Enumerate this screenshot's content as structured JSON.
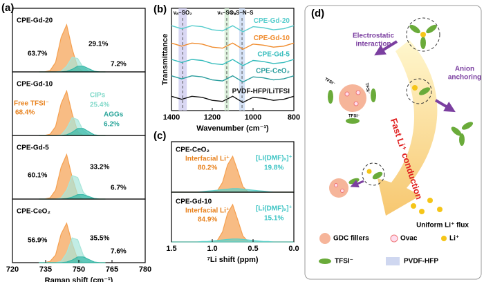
{
  "panels": [
    "(a)",
    "(b)",
    "(c)",
    "(d)"
  ],
  "chart_data": [
    {
      "type": "area",
      "title": "CPE-Gd-20",
      "x": [
        732,
        734.5,
        737,
        739.5,
        742,
        744.5,
        747,
        749.5,
        752,
        754.5,
        757,
        759.5,
        762
      ],
      "xlim": [
        720,
        780
      ],
      "ylim": [
        0,
        1
      ],
      "series": [
        {
          "color": "#f5a050",
          "values": [
            0,
            0,
            0.02,
            0.15,
            0.54,
            0.74,
            0.36,
            0.07,
            0,
            0,
            0,
            0,
            0
          ]
        },
        {
          "color": "#a8e6da",
          "values": [
            0,
            0,
            0,
            0,
            0.01,
            0.09,
            0.23,
            0.21,
            0.07,
            0.01,
            0,
            0,
            0
          ]
        },
        {
          "color": "#36b8a8",
          "values": [
            0,
            0,
            0,
            0,
            0,
            0.01,
            0.04,
            0.09,
            0.09,
            0.05,
            0.01,
            0,
            0
          ]
        }
      ],
      "annotations": [
        "63.7%",
        "29.1%",
        "7.2%"
      ]
    },
    {
      "type": "area",
      "title": "CPE-Gd-10",
      "x": [
        732,
        734.5,
        737,
        739.5,
        742,
        744.5,
        747,
        749.5,
        752,
        754.5,
        757,
        759.5,
        762
      ],
      "xlim": [
        720,
        780
      ],
      "ylim": [
        0,
        1
      ],
      "series": [
        {
          "color": "#f5a050",
          "values": [
            0,
            0,
            0.02,
            0.14,
            0.5,
            0.7,
            0.34,
            0.06,
            0,
            0,
            0,
            0,
            0
          ]
        },
        {
          "color": "#a8e6da",
          "values": [
            0,
            0,
            0,
            0,
            0.01,
            0.11,
            0.28,
            0.25,
            0.08,
            0.01,
            0,
            0,
            0
          ]
        },
        {
          "color": "#36b8a8",
          "values": [
            0,
            0,
            0,
            0,
            0,
            0.01,
            0.05,
            0.11,
            0.11,
            0.06,
            0.01,
            0,
            0
          ]
        }
      ],
      "annotations": [
        "Free TFSI⁻",
        "68.4%",
        "CIPs",
        "25.4%",
        "AGGs",
        "6.2%"
      ]
    },
    {
      "type": "area",
      "title": "CPE-Gd-5",
      "x": [
        732,
        734.5,
        737,
        739.5,
        742,
        744.5,
        747,
        749.5,
        752,
        754.5,
        757,
        759.5,
        762
      ],
      "xlim": [
        720,
        780
      ],
      "ylim": [
        0,
        1
      ],
      "series": [
        {
          "color": "#f5a050",
          "values": [
            0,
            0,
            0.02,
            0.14,
            0.5,
            0.7,
            0.34,
            0.06,
            0,
            0,
            0,
            0,
            0
          ]
        },
        {
          "color": "#a8e6da",
          "values": [
            0,
            0,
            0,
            0,
            0.02,
            0.14,
            0.37,
            0.34,
            0.11,
            0.02,
            0,
            0,
            0
          ]
        },
        {
          "color": "#36b8a8",
          "values": [
            0,
            0,
            0,
            0,
            0,
            0.01,
            0.03,
            0.07,
            0.07,
            0.04,
            0.01,
            0,
            0
          ]
        }
      ],
      "annotations": [
        "60.1%",
        "33.2%",
        "6.7%"
      ]
    },
    {
      "type": "area",
      "title": "CPE-CeO₂",
      "x": [
        732,
        734.5,
        737,
        739.5,
        742,
        744.5,
        747,
        749.5,
        752,
        754.5,
        757,
        759.5,
        762
      ],
      "xlim": [
        720,
        780
      ],
      "ylim": [
        0,
        1
      ],
      "xticks": [
        720,
        735,
        750,
        765,
        780
      ],
      "xlabel": "Raman shift (cm⁻¹)",
      "series": [
        {
          "color": "#f5a050",
          "values": [
            0,
            0,
            0.02,
            0.12,
            0.45,
            0.62,
            0.3,
            0.05,
            0,
            0,
            0,
            0,
            0
          ]
        },
        {
          "color": "#a8e6da",
          "values": [
            0,
            0,
            0,
            0,
            0.02,
            0.15,
            0.39,
            0.36,
            0.12,
            0.02,
            0,
            0,
            0
          ]
        },
        {
          "color": "#36b8a8",
          "values": [
            0,
            0,
            0,
            0,
            0,
            0.01,
            0.04,
            0.09,
            0.09,
            0.05,
            0.01,
            0,
            0
          ]
        }
      ],
      "annotations": [
        "56.9%",
        "35.5%",
        "7.6%"
      ]
    },
    {
      "type": "line",
      "x": [
        1400,
        1350,
        1300,
        1250,
        1200,
        1150,
        1100,
        1050,
        1000,
        950,
        900,
        850,
        800
      ],
      "xlim": [
        1400,
        800
      ],
      "ylim": [
        0,
        1
      ],
      "xticks": [
        1400,
        1200,
        1000,
        800
      ],
      "xlabel": "Wavenumber (cm⁻¹)",
      "ylabel": "Transmittance",
      "bands": [
        {
          "label": "νₐ–SO₂",
          "range": [
            1365,
            1325
          ],
          "color": "#cfcdf0"
        },
        {
          "label": "νₛ–SO₂",
          "range": [
            1140,
            1118
          ],
          "color": "#d3ecd3"
        },
        {
          "label": "νₐS–N–S",
          "range": [
            1068,
            1040
          ],
          "color": "#c9daf2"
        }
      ],
      "series": [
        {
          "name": "CPE-Gd-20",
          "color": "#55cccc",
          "values": [
            0.83,
            0.8,
            0.83,
            0.82,
            0.79,
            0.78,
            0.83,
            0.77,
            0.82,
            0.81,
            0.79,
            0.8,
            0.83
          ]
        },
        {
          "name": "CPE-Gd-10",
          "color": "#f08a2a",
          "values": [
            0.66,
            0.63,
            0.66,
            0.65,
            0.62,
            0.61,
            0.66,
            0.6,
            0.65,
            0.64,
            0.62,
            0.63,
            0.66
          ]
        },
        {
          "name": "CPE-Gd-5",
          "color": "#35bcbc",
          "values": [
            0.5,
            0.47,
            0.5,
            0.49,
            0.46,
            0.45,
            0.5,
            0.44,
            0.49,
            0.48,
            0.46,
            0.47,
            0.5
          ]
        },
        {
          "name": "CPE-CeO₂",
          "color": "#2a9d9d",
          "values": [
            0.34,
            0.31,
            0.34,
            0.33,
            0.3,
            0.29,
            0.34,
            0.28,
            0.33,
            0.32,
            0.3,
            0.31,
            0.34
          ]
        },
        {
          "name": "PVDF-HFP/LiTFSI",
          "color": "#111111",
          "values": [
            0.14,
            0.11,
            0.14,
            0.13,
            0.1,
            0.09,
            0.14,
            0.08,
            0.13,
            0.12,
            0.1,
            0.11,
            0.14
          ]
        }
      ]
    },
    {
      "type": "area",
      "title": "CPE-CeO₂",
      "x": [
        1.5,
        1.4375,
        1.375,
        1.3125,
        1.25,
        1.1875,
        1.125,
        1.0625,
        1.0,
        0.9375,
        0.875,
        0.8125,
        0.75,
        0.6875,
        0.625,
        0.5625,
        0.5,
        0.4375,
        0.375,
        0.3125,
        0.25,
        0.1875,
        0.125,
        0.0625,
        0
      ],
      "xlim": [
        1.5,
        0
      ],
      "ylim": [
        0,
        1
      ],
      "series": [
        {
          "color": "#f5a050",
          "values": [
            0,
            0,
            0,
            0,
            0,
            0,
            0,
            0,
            0,
            0.03,
            0.19,
            0.54,
            0.71,
            0.42,
            0.11,
            0.01,
            0,
            0,
            0,
            0,
            0,
            0,
            0,
            0,
            0
          ]
        },
        {
          "color": "#5fd0c8",
          "values": [
            0,
            0,
            0,
            0,
            0,
            0,
            0.01,
            0.02,
            0.03,
            0.04,
            0.05,
            0.06,
            0.07,
            0.07,
            0.06,
            0.05,
            0.04,
            0.03,
            0.02,
            0.01,
            0,
            0,
            0,
            0,
            0
          ]
        }
      ],
      "annotations": [
        "Interfacial Li⁺",
        "80.2%",
        "[Li(DMF)ₓ]⁺",
        "19.8%"
      ]
    },
    {
      "type": "area",
      "title": "CPE-Gd-10",
      "x": [
        1.5,
        1.4375,
        1.375,
        1.3125,
        1.25,
        1.1875,
        1.125,
        1.0625,
        1.0,
        0.9375,
        0.875,
        0.8125,
        0.75,
        0.6875,
        0.625,
        0.5625,
        0.5,
        0.4375,
        0.375,
        0.3125,
        0.25,
        0.1875,
        0.125,
        0.0625,
        0
      ],
      "xlim": [
        1.5,
        0
      ],
      "ylim": [
        0,
        1
      ],
      "xticks": [
        1.5,
        {
          "value": 1.0,
          "label": "1.0"
        },
        0.5,
        {
          "value": 0.0,
          "label": "0.0"
        }
      ],
      "xlabel": "⁷Li shift (ppm)",
      "series": [
        {
          "color": "#f5a050",
          "values": [
            0,
            0,
            0,
            0,
            0,
            0,
            0,
            0,
            0,
            0.03,
            0.2,
            0.57,
            0.75,
            0.44,
            0.12,
            0.01,
            0,
            0,
            0,
            0,
            0,
            0,
            0,
            0,
            0
          ]
        },
        {
          "color": "#5fd0c8",
          "values": [
            0,
            0,
            0,
            0,
            0,
            0,
            0.01,
            0.01,
            0.02,
            0.03,
            0.04,
            0.05,
            0.06,
            0.06,
            0.05,
            0.04,
            0.03,
            0.02,
            0.01,
            0.01,
            0,
            0,
            0,
            0,
            0
          ]
        }
      ],
      "annotations": [
        "Interfacial Li⁺",
        "84.9%",
        "[Li(DMF)ₓ]⁺",
        "15.1%"
      ]
    }
  ],
  "diagram": {
    "labels": [
      "Electrostatic",
      "interaction",
      "Anion",
      "anchoring",
      "Fast Li⁺ conduction",
      "Uniform Li⁺ flux"
    ],
    "particle_labels": [
      "TFSI⁻",
      "TFSI⁻",
      "TFSI⁻"
    ],
    "legend": [
      "GDC fillers",
      "Ovac",
      "Li⁺",
      "TFSI⁻",
      "PVDF-HFP"
    ]
  }
}
